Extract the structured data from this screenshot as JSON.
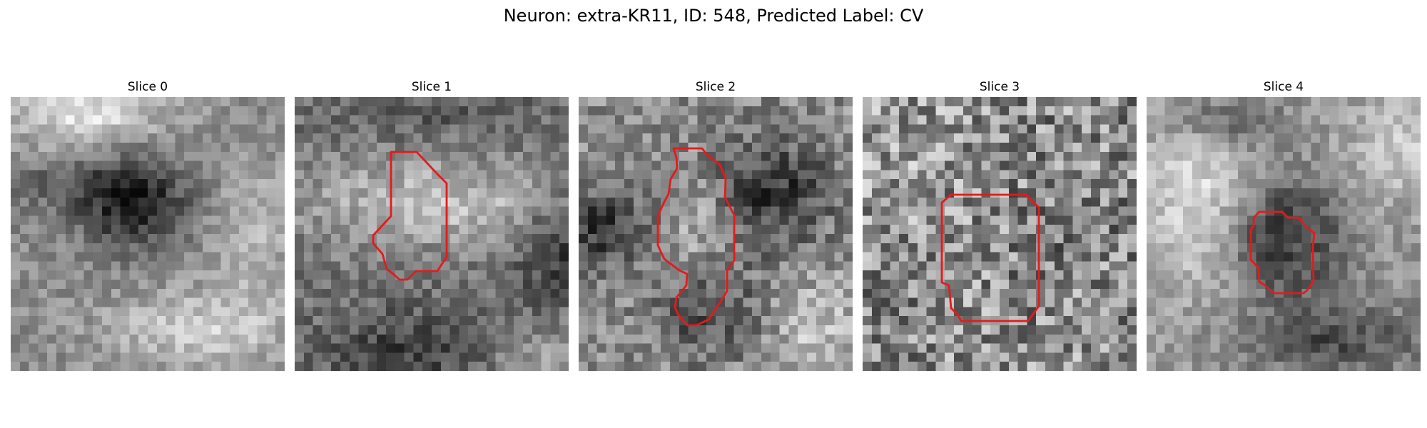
{
  "figure": {
    "title": "Neuron: extra-KR11, ID: 548, Predicted Label: CV"
  },
  "panels": [
    {
      "title": "Slice 0",
      "has_contour": false,
      "tone": "dark blob in upper center, light band at top-left and bottom"
    },
    {
      "title": "Slice 1",
      "has_contour": true,
      "tone": "light band across middle, darker bottom"
    },
    {
      "title": "Slice 2",
      "has_contour": true,
      "tone": "dark lobes left and right of contour"
    },
    {
      "title": "Slice 3",
      "has_contour": true,
      "tone": "noisy mid-gray texture"
    },
    {
      "title": "Slice 4",
      "has_contour": true,
      "tone": "dark ring around contour, light left side"
    }
  ],
  "colors": {
    "contour": "#e41a1c",
    "background": "#ffffff"
  },
  "image_style": "grayscale 30x30 pixel patches"
}
